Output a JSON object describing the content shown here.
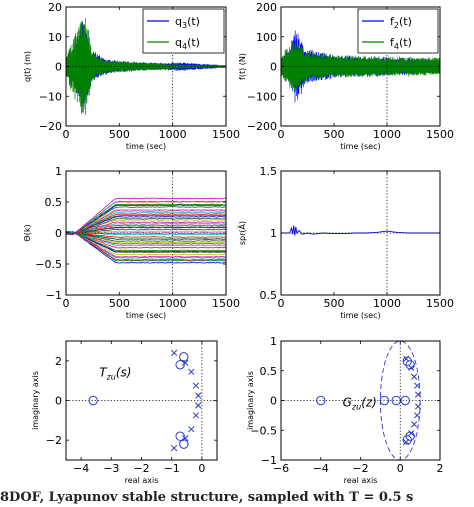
{
  "caption": "8DOF, Lyapunov stable structure, sampled with T = 0.5 s",
  "colors": {
    "blue": "#0000ff",
    "green": "#008000",
    "dashed": "#3333cc",
    "marker": "#2a3bcc"
  },
  "chart_data": [
    {
      "type": "line",
      "xlabel": "time (sec)",
      "ylabel": "q(t) (m)",
      "xlim": [
        0,
        1500
      ],
      "ylim": [
        -20,
        20
      ],
      "xticks": [
        "0",
        "500",
        "1000",
        "1500"
      ],
      "yticks": [
        "20",
        "10",
        "0",
        "−10",
        "−20"
      ],
      "grid": "dotted, x=1000 and y=0",
      "legend": {
        "position": "top-right",
        "entries": [
          {
            "label": "q",
            "sub": "3",
            "suffix": "(t)",
            "color": "#0000ff"
          },
          {
            "label": "q",
            "sub": "4",
            "suffix": "(t)",
            "color": "#008000"
          }
        ]
      },
      "series": [
        {
          "color": "#0000ff",
          "envelope": [
            [
              0,
              3
            ],
            [
              80,
              6
            ],
            [
              120,
              10
            ],
            [
              150,
              17
            ],
            [
              185,
              14
            ],
            [
              240,
              6
            ],
            [
              350,
              3
            ],
            [
              500,
              2
            ],
            [
              650,
              1.5
            ],
            [
              900,
              1.3
            ],
            [
              1100,
              1.5
            ],
            [
              1250,
              1
            ],
            [
              1500,
              0.4
            ]
          ]
        },
        {
          "color": "#008000",
          "envelope": [
            [
              0,
              4
            ],
            [
              80,
              11
            ],
            [
              130,
              16
            ],
            [
              190,
              17
            ],
            [
              240,
              6
            ],
            [
              350,
              2.5
            ],
            [
              600,
              1.8
            ],
            [
              1000,
              0.9
            ],
            [
              1200,
              0.6
            ],
            [
              1500,
              0.3
            ]
          ]
        }
      ]
    },
    {
      "type": "line",
      "xlabel": "time (sec)",
      "ylabel": "f(t) (N)",
      "xlim": [
        0,
        1500
      ],
      "ylim": [
        -200,
        200
      ],
      "xticks": [
        "0",
        "500",
        "1000",
        "1500"
      ],
      "yticks": [
        "200",
        "100",
        "0",
        "−100",
        "−200"
      ],
      "grid": "dotted, x=1000 and y=0",
      "legend": {
        "position": "top-right",
        "entries": [
          {
            "label": "f",
            "sub": "2",
            "suffix": "(t)",
            "color": "#0000ff"
          },
          {
            "label": "f",
            "sub": "4",
            "suffix": "(t)",
            "color": "#008000"
          }
        ]
      },
      "series": [
        {
          "color": "#0000ff",
          "envelope": [
            [
              0,
              30
            ],
            [
              90,
              60
            ],
            [
              140,
              140
            ],
            [
              180,
              100
            ],
            [
              260,
              60
            ],
            [
              500,
              40
            ],
            [
              1000,
              32
            ],
            [
              1500,
              25
            ]
          ]
        },
        {
          "color": "#008000",
          "envelope": [
            [
              0,
              35
            ],
            [
              100,
              90
            ],
            [
              160,
              100
            ],
            [
              220,
              60
            ],
            [
              500,
              40
            ],
            [
              1000,
              35
            ],
            [
              1500,
              32
            ]
          ]
        }
      ]
    },
    {
      "type": "line",
      "xlabel": "time (sec)",
      "ylabel": "Θ(k)",
      "xlim": [
        0,
        1500
      ],
      "ylim": [
        -1,
        1
      ],
      "xticks": [
        "0",
        "500",
        "1000",
        "1500"
      ],
      "yticks": [
        "1",
        "0.5",
        "0",
        "−0.5",
        "−1"
      ],
      "grid": "dotted, x=1000 and y=0",
      "series_count": 40,
      "final_values_range": [
        -0.48,
        0.55
      ]
    },
    {
      "type": "line",
      "xlabel": "time (sec)",
      "ylabel": "spr(Ã)",
      "xlim": [
        0,
        1500
      ],
      "ylim": [
        0.5,
        1.5
      ],
      "xticks": [
        "0",
        "500",
        "1000",
        "1500"
      ],
      "yticks": [
        "1.5",
        "1",
        "0.5"
      ],
      "grid": "dotted, x=1000 and y=1",
      "series": [
        {
          "color": "#0000ff",
          "x": [
            0,
            80,
            100,
            110,
            120,
            130,
            140,
            150,
            170,
            200,
            250,
            300,
            400,
            500,
            600,
            700,
            800,
            900,
            1000,
            1050,
            1100,
            1200,
            1300,
            1400,
            1500
          ],
          "y": [
            1.0,
            1.0,
            1.04,
            0.99,
            1.06,
            0.98,
            1.05,
            1.0,
            1.02,
            0.99,
            1.0,
            0.99,
            1.0,
            0.995,
            0.995,
            1.0,
            1.0,
            1.005,
            1.015,
            1.01,
            1.005,
            1.0,
            1.0,
            1.0,
            1.0
          ]
        }
      ]
    },
    {
      "type": "scatter",
      "title": "T_zu(s)",
      "xlabel": "real axis",
      "ylabel": "imaginary axis",
      "xlim": [
        -4.5,
        0.5
      ],
      "ylim": [
        -3,
        3
      ],
      "xticks": [
        "−4",
        "−3",
        "−2",
        "−1",
        "0"
      ],
      "yticks": [
        "2",
        "0",
        "−2"
      ],
      "grid": "dotted, x=0 and y=0",
      "zeros": [
        [
          -3.6,
          0
        ],
        [
          -0.6,
          2.2
        ],
        [
          -0.6,
          -2.2
        ],
        [
          -0.72,
          1.8
        ],
        [
          -0.72,
          -1.8
        ]
      ],
      "poles": [
        [
          -0.92,
          2.4
        ],
        [
          -0.92,
          -2.4
        ],
        [
          -0.55,
          1.9
        ],
        [
          -0.55,
          -1.9
        ],
        [
          -0.35,
          1.45
        ],
        [
          -0.35,
          -1.45
        ],
        [
          -0.2,
          0.75
        ],
        [
          -0.2,
          -0.75
        ],
        [
          -0.12,
          0.25
        ],
        [
          -0.12,
          -0.25
        ]
      ]
    },
    {
      "type": "scatter",
      "title": "G_zu(z)",
      "xlabel": "real axis",
      "ylabel": "imaginary axis",
      "xlim": [
        -6,
        2
      ],
      "ylim": [
        -1,
        1
      ],
      "xticks": [
        "−6",
        "−4",
        "−2",
        "0",
        "2"
      ],
      "yticks": [
        "1",
        "0.5",
        "0",
        "−0.5",
        "−1"
      ],
      "grid": "dotted, x=0 and y=0",
      "unit_circle": "dashed",
      "zeros": [
        [
          -4,
          0
        ],
        [
          -0.8,
          0
        ],
        [
          -0.2,
          0
        ],
        [
          0.25,
          0
        ],
        [
          0.35,
          0.66
        ],
        [
          0.35,
          -0.66
        ],
        [
          0.5,
          0.6
        ],
        [
          0.5,
          -0.6
        ]
      ],
      "poles": [
        [
          0.3,
          0.7
        ],
        [
          0.3,
          -0.7
        ],
        [
          0.55,
          0.55
        ],
        [
          0.55,
          -0.55
        ],
        [
          0.7,
          0.4
        ],
        [
          0.7,
          -0.4
        ],
        [
          0.85,
          0.25
        ],
        [
          0.85,
          -0.25
        ],
        [
          0.9,
          0.1
        ],
        [
          0.9,
          -0.1
        ]
      ]
    }
  ]
}
